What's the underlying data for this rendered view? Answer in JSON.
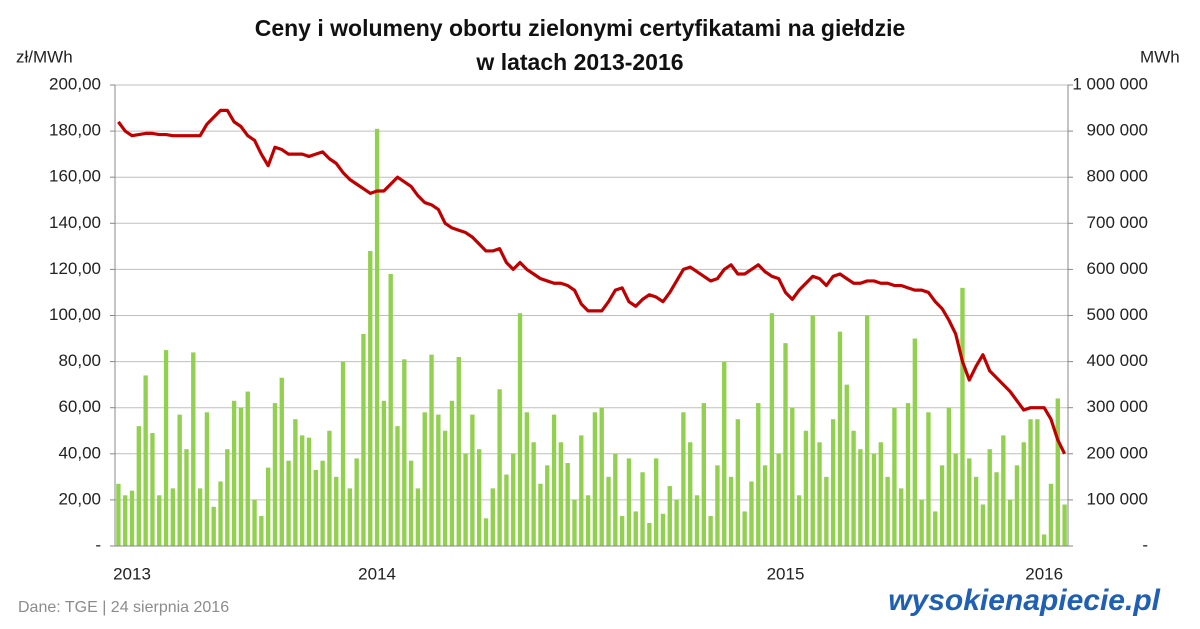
{
  "chart_data": {
    "type": "combo",
    "title": [
      "Ceny i wolumeny obortu zielonymi certyfikatami na giełdzie",
      "w latach 2013-2016"
    ],
    "y_label": "zł/MWh",
    "y2_label": "MWh",
    "source": "Dane: TGE  |  24 sierpnia 2016",
    "logo": "wysokienapiecie.pl",
    "grid": true,
    "categories": [
      null,
      null,
      "2013",
      null,
      null,
      null,
      null,
      null,
      null,
      null,
      null,
      null,
      null,
      null,
      null,
      null,
      null,
      null,
      null,
      null,
      null,
      null,
      null,
      null,
      null,
      null,
      null,
      null,
      null,
      null,
      null,
      null,
      null,
      null,
      null,
      null,
      null,
      null,
      "2014",
      null,
      null,
      null,
      null,
      null,
      null,
      null,
      null,
      null,
      null,
      null,
      null,
      null,
      null,
      null,
      null,
      null,
      null,
      null,
      null,
      null,
      null,
      null,
      null,
      null,
      null,
      null,
      null,
      null,
      null,
      null,
      null,
      null,
      null,
      null,
      null,
      null,
      null,
      null,
      null,
      null,
      null,
      null,
      null,
      null,
      null,
      null,
      null,
      null,
      null,
      null,
      null,
      null,
      null,
      null,
      null,
      null,
      null,
      null,
      "2015",
      null,
      null,
      null,
      null,
      null,
      null,
      null,
      null,
      null,
      null,
      null,
      null,
      null,
      null,
      null,
      null,
      null,
      null,
      null,
      null,
      null,
      null,
      null,
      null,
      null,
      null,
      null,
      null,
      null,
      null,
      null,
      null,
      null,
      null,
      null,
      null,
      null,
      "2016",
      null,
      null,
      null
    ],
    "ylim": [
      0,
      200
    ],
    "yticks": [
      {
        "value": 0,
        "label": "-"
      },
      {
        "value": 20,
        "label": "20,00"
      },
      {
        "value": 40,
        "label": "40,00"
      },
      {
        "value": 60,
        "label": "60,00"
      },
      {
        "value": 80,
        "label": "80,00"
      },
      {
        "value": 100,
        "label": "100,00"
      },
      {
        "value": 120,
        "label": "120,00"
      },
      {
        "value": 140,
        "label": "140,00"
      },
      {
        "value": 160,
        "label": "160,00"
      },
      {
        "value": 180,
        "label": "180,00"
      },
      {
        "value": 200,
        "label": "200,00"
      }
    ],
    "y2lim": [
      0,
      1000000
    ],
    "y2ticks": [
      {
        "value": 0,
        "label": "-"
      },
      {
        "value": 100000,
        "label": "100 000"
      },
      {
        "value": 200000,
        "label": "200 000"
      },
      {
        "value": 300000,
        "label": "300 000"
      },
      {
        "value": 400000,
        "label": "400 000"
      },
      {
        "value": 500000,
        "label": "500 000"
      },
      {
        "value": 600000,
        "label": "600 000"
      },
      {
        "value": 700000,
        "label": "700 000"
      },
      {
        "value": 800000,
        "label": "800 000"
      },
      {
        "value": 900000,
        "label": "900 000"
      },
      {
        "value": 1000000,
        "label": "1 000 000"
      }
    ],
    "series": [
      {
        "type": "bar",
        "axis": "y2",
        "color": "#92d050",
        "values": [
          135000,
          110000,
          120000,
          260000,
          370000,
          245000,
          110000,
          425000,
          125000,
          285000,
          210000,
          420000,
          125000,
          290000,
          85000,
          140000,
          210000,
          315000,
          300000,
          335000,
          100000,
          65000,
          170000,
          310000,
          365000,
          185000,
          275000,
          240000,
          235000,
          165000,
          185000,
          250000,
          150000,
          400000,
          125000,
          190000,
          460000,
          640000,
          905000,
          315000,
          590000,
          260000,
          405000,
          185000,
          125000,
          290000,
          415000,
          285000,
          250000,
          315000,
          410000,
          200000,
          285000,
          210000,
          60000,
          125000,
          340000,
          155000,
          200000,
          505000,
          290000,
          225000,
          135000,
          175000,
          285000,
          225000,
          180000,
          100000,
          240000,
          110000,
          290000,
          300000,
          150000,
          200000,
          65000,
          190000,
          75000,
          160000,
          50000,
          190000,
          70000,
          130000,
          100000,
          290000,
          225000,
          110000,
          310000,
          65000,
          175000,
          400000,
          150000,
          275000,
          75000,
          140000,
          310000,
          175000,
          505000,
          200000,
          440000,
          300000,
          110000,
          250000,
          500000,
          225000,
          150000,
          275000,
          465000,
          350000,
          250000,
          210000,
          500000,
          200000,
          225000,
          150000,
          300000,
          125000,
          310000,
          450000,
          100000,
          290000,
          75000,
          175000,
          300000,
          200000,
          560000,
          190000,
          150000,
          90000,
          210000,
          160000,
          240000,
          100000,
          175000,
          225000,
          275000,
          275000,
          25000,
          135000,
          320000,
          90000
        ]
      },
      {
        "type": "line",
        "axis": "y",
        "color": "#c00000",
        "values": [
          184,
          180,
          178,
          178.5,
          179,
          179,
          178.5,
          178.5,
          178,
          178,
          178,
          178,
          178,
          183,
          186,
          189,
          189,
          184,
          182,
          178,
          176,
          170,
          165,
          173,
          172,
          170,
          170,
          170,
          169,
          170,
          171,
          168,
          166,
          162,
          159,
          157,
          155,
          153,
          154,
          154,
          157,
          160,
          158,
          156,
          152,
          149,
          148,
          146,
          140,
          138,
          137,
          136,
          134,
          131,
          128,
          128,
          129,
          123,
          120,
          123,
          120,
          118,
          116,
          115,
          114,
          114,
          113,
          111,
          105,
          102,
          102,
          102,
          106,
          111,
          112,
          106,
          104,
          107,
          109,
          108,
          106,
          110,
          115,
          120,
          121,
          119,
          117,
          115,
          116,
          120,
          122,
          118,
          118,
          120,
          122,
          119,
          117,
          116,
          110,
          107,
          111,
          114,
          117,
          116,
          113,
          117,
          118,
          116,
          114,
          114,
          115,
          115,
          114,
          114,
          113,
          113,
          112,
          111,
          111,
          110,
          106,
          103,
          98,
          92,
          80,
          72,
          78,
          83,
          76,
          73,
          70,
          67,
          63,
          59,
          60,
          60,
          60,
          55,
          46,
          40
        ]
      }
    ]
  }
}
